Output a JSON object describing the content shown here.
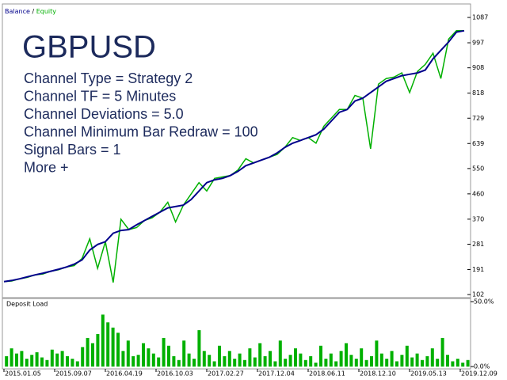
{
  "chart_data": [
    {
      "type": "line",
      "legend_separator": "/",
      "annotations": {
        "title": "GBPUSD",
        "lines": [
          "Channel Type = Strategy 2",
          "Channel TF = 5 Minutes",
          "Channel Deviations = 5.0",
          "Channel Minimum Bar Redraw = 100",
          "Signal Bars = 1",
          "More +"
        ]
      },
      "ylim": [
        91,
        1135
      ],
      "yticks": [
        102,
        191,
        281,
        370,
        460,
        550,
        639,
        729,
        818,
        908,
        997,
        1087
      ],
      "series": [
        {
          "name": "Balance",
          "color": "#00008b",
          "values": [
            148,
            152,
            158,
            165,
            172,
            178,
            185,
            192,
            200,
            210,
            225,
            260,
            280,
            290,
            320,
            330,
            333,
            350,
            365,
            380,
            395,
            410,
            415,
            420,
            440,
            470,
            500,
            510,
            515,
            525,
            540,
            560,
            570,
            580,
            590,
            605,
            625,
            640,
            650,
            660,
            670,
            690,
            720,
            750,
            760,
            790,
            800,
            820,
            840,
            860,
            870,
            880,
            885,
            890,
            900,
            940,
            970,
            1000,
            1035,
            1040
          ]
        },
        {
          "name": "Equity",
          "color": "#00b000",
          "values": [
            148,
            150,
            158,
            163,
            172,
            175,
            185,
            190,
            200,
            205,
            230,
            300,
            195,
            290,
            145,
            370,
            333,
            340,
            365,
            375,
            395,
            430,
            360,
            420,
            460,
            500,
            470,
            515,
            520,
            525,
            545,
            585,
            570,
            580,
            590,
            600,
            625,
            660,
            650,
            660,
            640,
            700,
            730,
            760,
            760,
            810,
            800,
            620,
            850,
            870,
            875,
            890,
            820,
            895,
            920,
            960,
            870,
            1010,
            1040,
            1040
          ]
        }
      ]
    },
    {
      "type": "bar",
      "title": "Deposit Load",
      "color": "#00b000",
      "ylim": [
        0,
        50
      ],
      "yticks": [
        {
          "value": 0,
          "label": "0.0%"
        },
        {
          "value": 50,
          "label": "50.0%"
        }
      ],
      "categories": [
        "2015.01.05",
        null,
        null,
        null,
        null,
        null,
        null,
        null,
        null,
        null,
        "2015.09.07",
        null,
        null,
        null,
        null,
        null,
        null,
        null,
        null,
        null,
        "2016.04.19",
        null,
        null,
        null,
        null,
        null,
        null,
        null,
        null,
        null,
        "2016.10.03",
        null,
        null,
        null,
        null,
        null,
        null,
        null,
        null,
        null,
        "2017.02.27",
        null,
        null,
        null,
        null,
        null,
        null,
        null,
        null,
        null,
        "2017.12.04",
        null,
        null,
        null,
        null,
        null,
        null,
        null,
        null,
        null,
        "2018.06.11",
        null,
        null,
        null,
        null,
        null,
        null,
        null,
        null,
        null,
        "2018.12.10",
        null,
        null,
        null,
        null,
        null,
        null,
        null,
        null,
        null,
        "2019.05.13",
        null,
        null,
        null,
        null,
        null,
        null,
        null,
        null,
        null,
        "2019.12.09",
        null
      ],
      "values": [
        8,
        14,
        10,
        12,
        6,
        9,
        11,
        7,
        5,
        13,
        10,
        12,
        8,
        6,
        4,
        15,
        22,
        18,
        25,
        40,
        34,
        30,
        26,
        12,
        20,
        8,
        9,
        18,
        14,
        10,
        7,
        22,
        16,
        8,
        5,
        20,
        10,
        6,
        28,
        12,
        9,
        4,
        16,
        8,
        12,
        6,
        10,
        5,
        14,
        7,
        18,
        8,
        12,
        4,
        20,
        6,
        9,
        14,
        10,
        5,
        8,
        3,
        16,
        6,
        10,
        4,
        12,
        18,
        9,
        6,
        14,
        5,
        8,
        20,
        10,
        6,
        12,
        4,
        9,
        16,
        7,
        10,
        5,
        8,
        14,
        6,
        22,
        9,
        4,
        6,
        3,
        5
      ]
    }
  ]
}
